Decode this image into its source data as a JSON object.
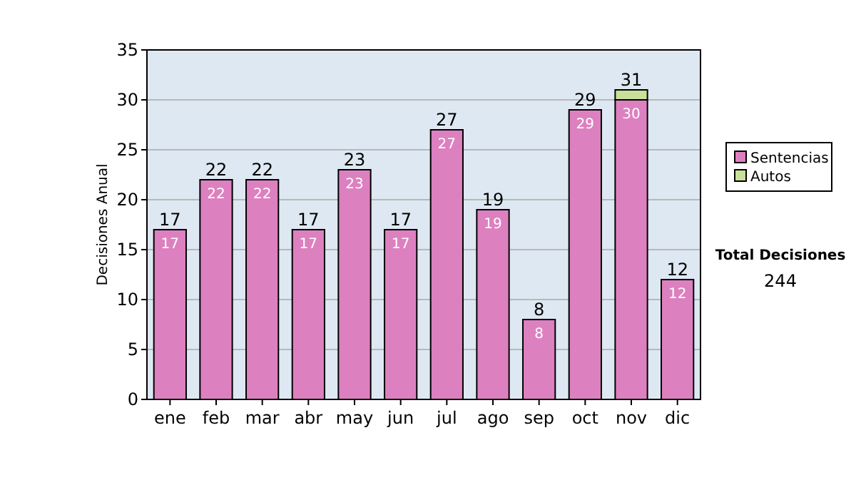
{
  "chart_data": {
    "type": "bar",
    "stacked": true,
    "ylabel": "Decisiones Anual",
    "categories": [
      "ene",
      "feb",
      "mar",
      "abr",
      "may",
      "jun",
      "jul",
      "ago",
      "sep",
      "oct",
      "nov",
      "dic"
    ],
    "series": [
      {
        "name": "Sentencias",
        "color": "#dd80c0",
        "values": [
          17,
          22,
          22,
          17,
          23,
          17,
          27,
          19,
          8,
          29,
          30,
          12
        ],
        "value_labels": [
          "17",
          "22",
          "22",
          "17",
          "23",
          "17",
          "27",
          "19",
          "8",
          "29",
          "30",
          "12"
        ]
      },
      {
        "name": "Autos",
        "color": "#c8e09a",
        "values": [
          0,
          0,
          0,
          0,
          0,
          0,
          0,
          0,
          0,
          0,
          1,
          0
        ]
      }
    ],
    "totals": [
      "17",
      "22",
      "22",
      "17",
      "23",
      "17",
      "27",
      "19",
      "8",
      "29",
      "31",
      "12"
    ],
    "ylim": [
      0,
      35
    ],
    "yticks": [
      0,
      5,
      10,
      15,
      20,
      25,
      30,
      35
    ],
    "grid": "y",
    "legend": "right",
    "annotations": [
      "Total Decisiones",
      "244"
    ]
  }
}
